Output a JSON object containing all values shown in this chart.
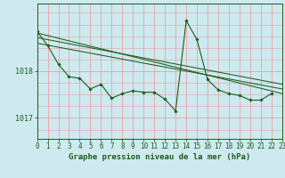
{
  "background_color": "#ceeaf0",
  "grid_color_v": "#e8a0a0",
  "grid_color_h": "#e8a0a0",
  "line_color": "#1a5c1a",
  "title": "Graphe pression niveau de la mer (hPa)",
  "tick_fontsize": 5.5,
  "title_fontsize": 6.5,
  "xlim": [
    0,
    23
  ],
  "ylim": [
    1016.55,
    1019.45
  ],
  "yticks": [
    1017,
    1018
  ],
  "xticks": [
    0,
    1,
    2,
    3,
    4,
    5,
    6,
    7,
    8,
    9,
    10,
    11,
    12,
    13,
    14,
    15,
    16,
    17,
    18,
    19,
    20,
    21,
    22,
    23
  ],
  "series1": [
    1018.85,
    1018.55,
    1018.15,
    1017.88,
    1017.85,
    1017.62,
    1017.72,
    1017.42,
    1017.52,
    1017.58,
    1017.55,
    1017.55,
    1017.4,
    1017.15,
    1019.08,
    1018.68,
    1017.82,
    1017.6,
    1017.52,
    1017.48,
    1017.38,
    1017.38,
    1017.52,
    null
  ],
  "series2_x": [
    0,
    23
  ],
  "series2_y": [
    1018.82,
    1017.52
  ],
  "series3_x": [
    0,
    23
  ],
  "series3_y": [
    1018.72,
    1017.72
  ],
  "series4_x": [
    0,
    23
  ],
  "series4_y": [
    1018.6,
    1017.62
  ]
}
